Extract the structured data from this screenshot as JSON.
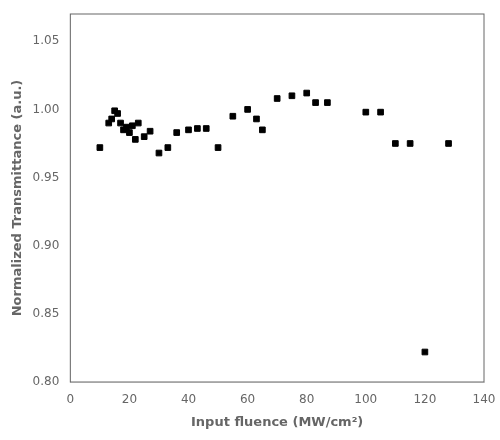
{
  "chart_data": {
    "type": "scatter",
    "x": [
      10,
      13,
      14,
      15,
      16,
      17,
      18,
      19,
      20,
      21,
      22,
      23,
      25,
      27,
      30,
      33,
      36,
      40,
      43,
      46,
      50,
      55,
      60,
      63,
      65,
      70,
      75,
      80,
      83,
      87,
      100,
      105,
      110,
      115,
      120,
      128
    ],
    "values": [
      0.972,
      0.99,
      0.993,
      0.999,
      0.997,
      0.99,
      0.985,
      0.987,
      0.983,
      0.988,
      0.978,
      0.99,
      0.98,
      0.984,
      0.968,
      0.972,
      0.983,
      0.985,
      0.986,
      0.986,
      0.972,
      0.995,
      1.0,
      0.993,
      0.985,
      1.008,
      1.01,
      1.012,
      1.005,
      1.005,
      0.998,
      0.998,
      0.975,
      0.975,
      0.822,
      0.975
    ],
    "xlabel": "Input fluence (MW/cm²)",
    "ylabel": "Normalized Transmittance (a.u.)",
    "xlim": [
      0,
      140
    ],
    "ylim": [
      0.8,
      1.07
    ],
    "xticks": [
      0,
      20,
      40,
      60,
      80,
      100,
      120,
      140
    ],
    "yticks": [
      {
        "value": 0.8,
        "label": "0.80"
      },
      {
        "value": 0.85,
        "label": "0.85"
      },
      {
        "value": 0.9,
        "label": "0.90"
      },
      {
        "value": 0.95,
        "label": "0.95"
      },
      {
        "value": 1.0,
        "label": "1.00"
      },
      {
        "value": 1.05,
        "label": "1.05"
      }
    ],
    "color": "black",
    "marker": "square",
    "grid": false
  }
}
